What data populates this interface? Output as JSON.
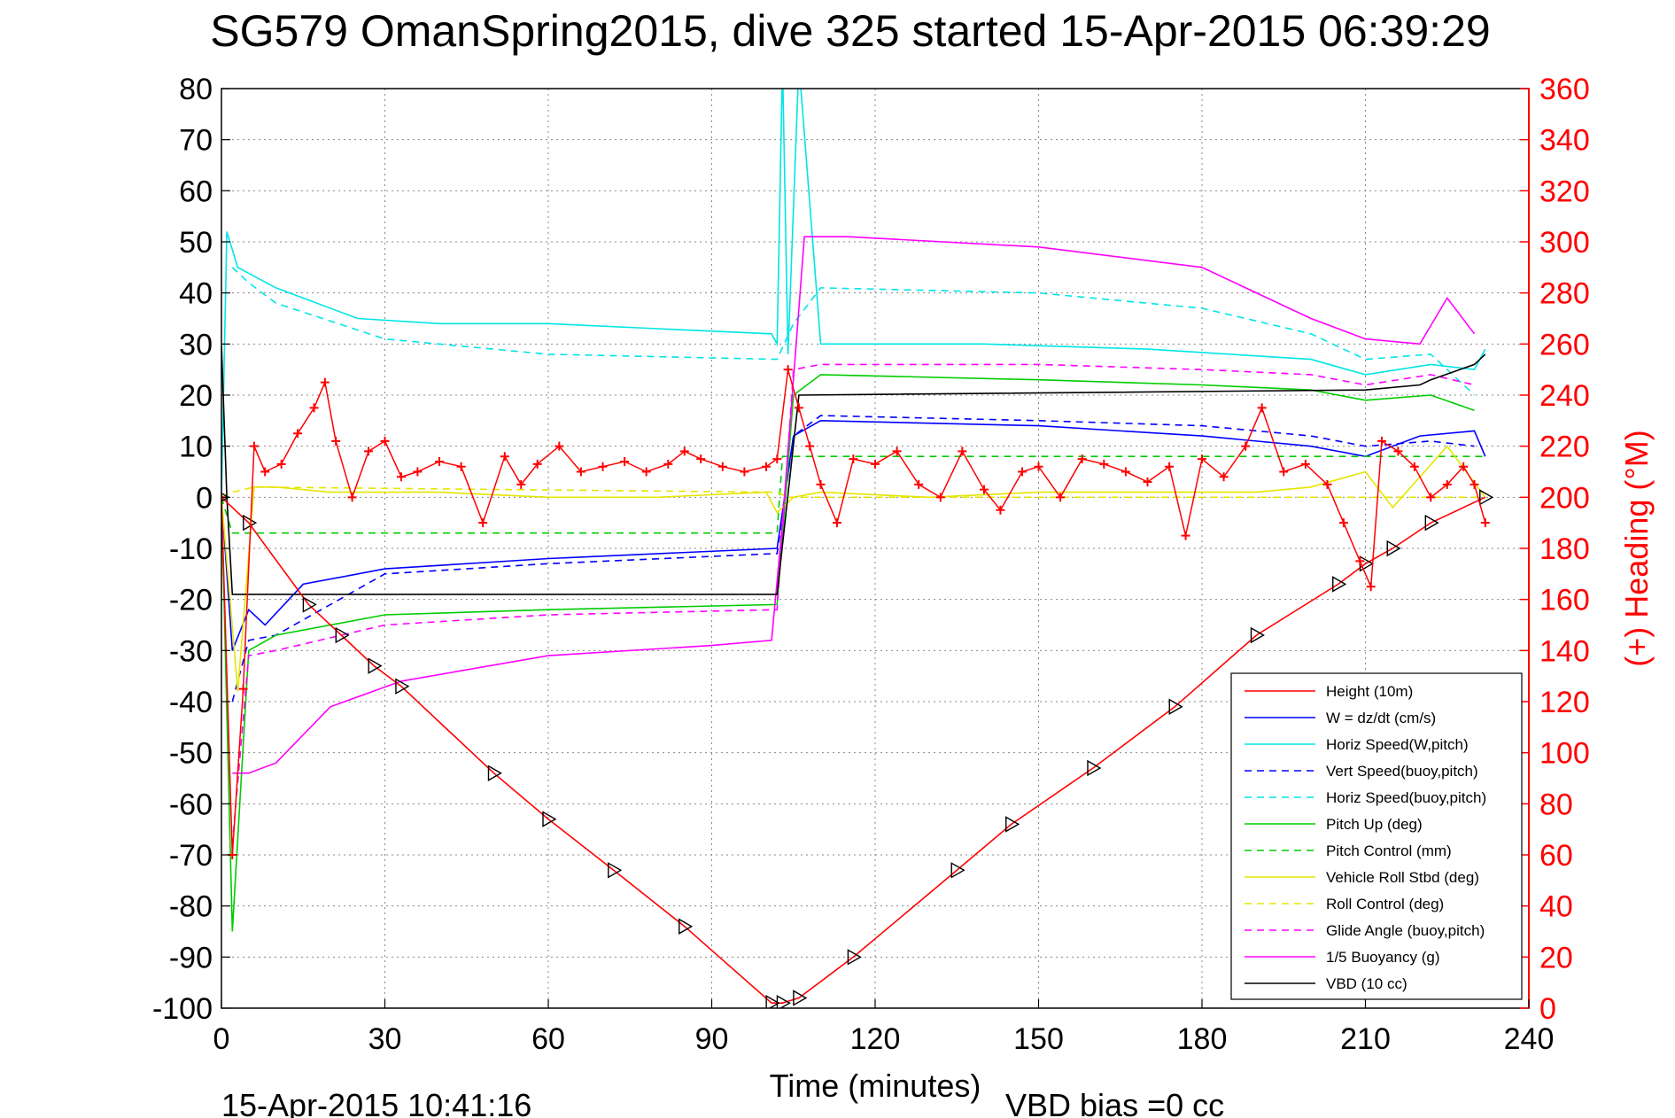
{
  "chart_data": {
    "type": "line",
    "title": "SG579 OmanSpring2015, dive 325 started 15-Apr-2015 06:39:29",
    "xlabel": "Time (minutes)",
    "ylabel_right": "(+) Heading (°M)",
    "footer_left": "15-Apr-2015 10:41:16",
    "footer_right": "VBD bias =0 cc",
    "xlim": [
      0,
      240
    ],
    "ylim": [
      -100,
      80
    ],
    "ylim_right": [
      0,
      360
    ],
    "x_ticks": [
      0,
      30,
      60,
      90,
      120,
      150,
      180,
      210,
      240
    ],
    "y_ticks": [
      80,
      70,
      60,
      50,
      40,
      30,
      20,
      10,
      0,
      -10,
      -20,
      -30,
      -40,
      -50,
      -60,
      -70,
      -80,
      -90,
      -100
    ],
    "y_ticks_right": [
      360,
      340,
      320,
      300,
      280,
      260,
      240,
      220,
      200,
      180,
      160,
      140,
      120,
      100,
      80,
      60,
      40,
      20,
      0
    ],
    "grid": true,
    "legend_position": "bottom-right",
    "series": [
      {
        "name": "Height (10m)",
        "color": "#ff0000",
        "dash": "solid",
        "marker": "triangle-right",
        "x": [
          0,
          5,
          16,
          22,
          28,
          33,
          50,
          60,
          72,
          85,
          101,
          103,
          106,
          116,
          135,
          145,
          160,
          175,
          190,
          205,
          210,
          215,
          222,
          232
        ],
        "y": [
          0,
          -5,
          -21,
          -27,
          -33,
          -37,
          -54,
          -63,
          -73,
          -84,
          -99,
          -99,
          -98,
          -90,
          -73,
          -64,
          -53,
          -41,
          -27,
          -17,
          -13,
          -10,
          -5,
          0
        ]
      },
      {
        "name": "W = dz/dt (cm/s)",
        "color": "#0000ff",
        "dash": "solid",
        "x": [
          0,
          2,
          5,
          8,
          15,
          30,
          60,
          102,
          105,
          110,
          150,
          180,
          200,
          210,
          220,
          230,
          232
        ],
        "y": [
          0,
          -30,
          -22,
          -25,
          -17,
          -14,
          -12,
          -10,
          12,
          15,
          14,
          12,
          10,
          8,
          12,
          13,
          8
        ]
      },
      {
        "name": "Horiz Speed(W,pitch)",
        "color": "#00e5e5",
        "dash": "solid",
        "x": [
          0,
          1,
          3,
          10,
          25,
          40,
          60,
          80,
          101,
          102,
          103,
          104,
          106,
          110,
          140,
          170,
          200,
          210,
          222,
          230,
          232
        ],
        "y": [
          0,
          52,
          45,
          41,
          35,
          34,
          34,
          33,
          32,
          30,
          85,
          28,
          85,
          30,
          30,
          29,
          27,
          24,
          26,
          25,
          29
        ]
      },
      {
        "name": "Vert Speed(buoy,pitch)",
        "color": "#0000ff",
        "dash": "dashed",
        "x": [
          2,
          5,
          10,
          30,
          60,
          102,
          105,
          110,
          150,
          180,
          200,
          210,
          222,
          230
        ],
        "y": [
          -40,
          -28,
          -27,
          -15,
          -13,
          -11,
          12,
          16,
          15,
          14,
          12,
          10,
          11,
          10
        ]
      },
      {
        "name": "Horiz Speed(buoy,pitch)",
        "color": "#00e5e5",
        "dash": "dashed",
        "x": [
          2,
          5,
          10,
          30,
          60,
          102,
          105,
          110,
          150,
          180,
          200,
          210,
          222,
          230
        ],
        "y": [
          45,
          42,
          38,
          31,
          28,
          27,
          34,
          41,
          40,
          37,
          32,
          27,
          28,
          20
        ]
      },
      {
        "name": "Pitch Up (deg)",
        "color": "#00cc00",
        "dash": "solid",
        "x": [
          0,
          2,
          5,
          10,
          30,
          60,
          102,
          105,
          110,
          150,
          180,
          200,
          210,
          222,
          230
        ],
        "y": [
          0,
          -85,
          -30,
          -27,
          -23,
          -22,
          -21,
          20,
          24,
          23,
          22,
          21,
          19,
          20,
          17
        ]
      },
      {
        "name": "Pitch Control (mm)",
        "color": "#00cc00",
        "dash": "dashed",
        "x": [
          0,
          2,
          5,
          102,
          103,
          232
        ],
        "y": [
          0,
          -7,
          -7,
          -7,
          8,
          8
        ]
      },
      {
        "name": "Vehicle Roll Stbd (deg)",
        "color": "#e5e500",
        "dash": "solid",
        "x": [
          0,
          3,
          6,
          10,
          20,
          40,
          60,
          80,
          100,
          102,
          105,
          110,
          130,
          150,
          170,
          190,
          200,
          210,
          215,
          225,
          232
        ],
        "y": [
          0,
          -38,
          2,
          2,
          1,
          1,
          0,
          0,
          1,
          -3,
          0,
          1,
          0,
          1,
          1,
          1,
          2,
          5,
          -2,
          10,
          0
        ]
      },
      {
        "name": "Roll Control (deg)",
        "color": "#e5e500",
        "dash": "dashed",
        "x": [
          0,
          2,
          6,
          102,
          104,
          232
        ],
        "y": [
          0,
          1,
          2,
          1,
          0,
          0
        ]
      },
      {
        "name": "Glide Angle (buoy,pitch)",
        "color": "#ff00ff",
        "dash": "dashed",
        "x": [
          2,
          5,
          10,
          30,
          60,
          102,
          105,
          110,
          150,
          180,
          200,
          210,
          222,
          230
        ],
        "y": [
          -68,
          -31,
          -30,
          -25,
          -23,
          -22,
          25,
          26,
          26,
          25,
          24,
          22,
          24,
          22
        ]
      },
      {
        "name": "1/5 Buoyancy (g)",
        "color": "#ff00ff",
        "dash": "solid",
        "x": [
          2,
          5,
          10,
          20,
          33,
          60,
          90,
          101,
          103,
          107,
          115,
          150,
          180,
          200,
          210,
          220,
          225,
          230
        ],
        "y": [
          -54,
          -54,
          -52,
          -41,
          -36,
          -31,
          -29,
          -28,
          -5,
          51,
          51,
          49,
          45,
          35,
          31,
          30,
          39,
          32
        ]
      },
      {
        "name": "VBD (10 cc)",
        "color": "#000000",
        "dash": "solid",
        "x": [
          0,
          1,
          2,
          102,
          106,
          210,
          220,
          222,
          230,
          232
        ],
        "y": [
          30,
          0,
          -19,
          -19,
          20,
          21,
          22,
          23,
          26,
          28
        ]
      },
      {
        "name": "Heading",
        "color": "#ff0000",
        "marker": "plus",
        "axis": "right",
        "x": [
          0,
          2,
          4,
          6,
          8,
          11,
          14,
          17,
          19,
          21,
          24,
          27,
          30,
          33,
          36,
          40,
          44,
          48,
          52,
          55,
          58,
          62,
          66,
          70,
          74,
          78,
          82,
          85,
          88,
          92,
          96,
          100,
          102,
          104,
          106,
          108,
          110,
          113,
          116,
          120,
          124,
          128,
          132,
          136,
          140,
          143,
          147,
          150,
          154,
          158,
          162,
          166,
          170,
          174,
          177,
          180,
          184,
          188,
          191,
          195,
          199,
          203,
          206,
          209,
          211,
          213,
          216,
          219,
          222,
          225,
          228,
          230,
          232
        ],
        "y": [
          200,
          60,
          125,
          220,
          210,
          213,
          225,
          235,
          245,
          222,
          200,
          218,
          222,
          208,
          210,
          214,
          212,
          190,
          216,
          205,
          213,
          220,
          210,
          212,
          214,
          210,
          213,
          218,
          215,
          212,
          210,
          212,
          215,
          250,
          235,
          220,
          205,
          190,
          215,
          213,
          218,
          205,
          200,
          218,
          203,
          195,
          210,
          212,
          200,
          215,
          213,
          210,
          206,
          212,
          185,
          215,
          208,
          220,
          235,
          210,
          213,
          205,
          190,
          175,
          165,
          222,
          218,
          212,
          200,
          205,
          212,
          205,
          190
        ]
      }
    ]
  }
}
